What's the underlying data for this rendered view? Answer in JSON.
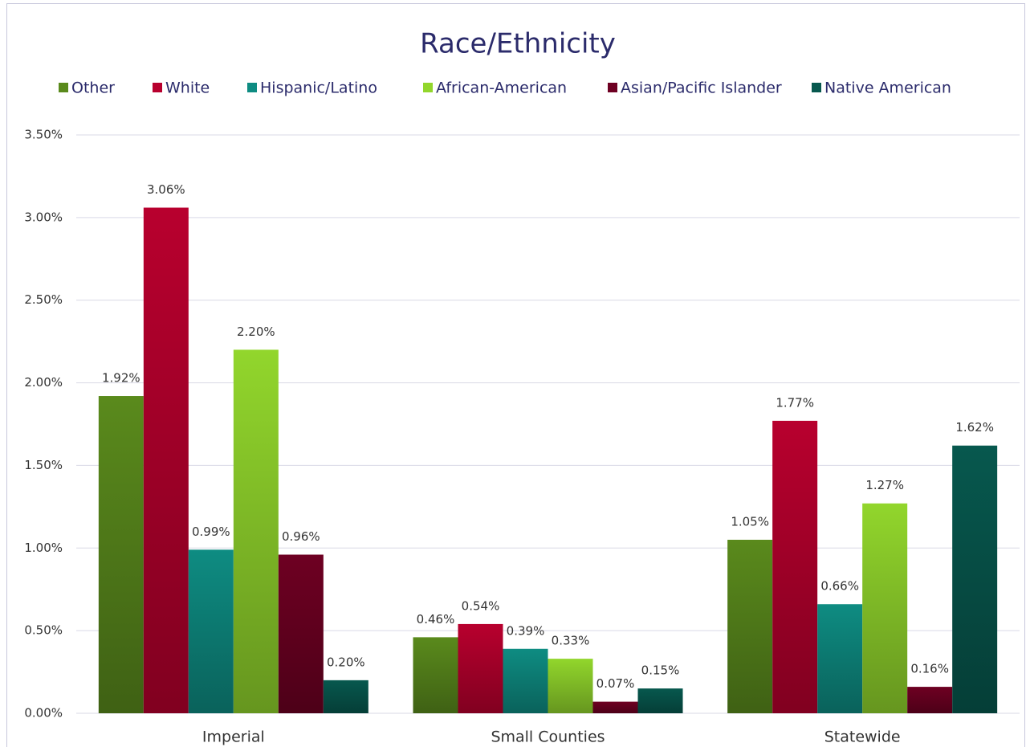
{
  "chart_data": {
    "type": "bar",
    "title": "Race/Ethnicity",
    "categories": [
      "Imperial",
      "Small Counties",
      "Statewide"
    ],
    "series": [
      {
        "name": "Other",
        "color": "#5a8a1c",
        "values": [
          1.92,
          0.46,
          1.05
        ],
        "value_labels": [
          "1.92%",
          "0.46%",
          "1.05%"
        ]
      },
      {
        "name": "White",
        "color": "#b8002e",
        "values": [
          3.06,
          0.54,
          1.77
        ],
        "value_labels": [
          "3.06%",
          "0.54%",
          "1.77%"
        ]
      },
      {
        "name": "Hispanic/Latino",
        "color": "#0e8c82",
        "values": [
          0.99,
          0.39,
          0.66
        ],
        "value_labels": [
          "0.99%",
          "0.39%",
          "0.66%"
        ]
      },
      {
        "name": "African-American",
        "color": "#92d62c",
        "values": [
          2.2,
          0.33,
          1.27
        ],
        "value_labels": [
          "2.20%",
          "0.33%",
          "1.27%"
        ]
      },
      {
        "name": "Asian/Pacific Islander",
        "color": "#6e0022",
        "values": [
          0.96,
          0.07,
          0.16
        ],
        "value_labels": [
          "0.96%",
          "0.07%",
          "0.16%"
        ]
      },
      {
        "name": "Native American",
        "color": "#07584e",
        "values": [
          0.2,
          0.15,
          1.62
        ],
        "value_labels": [
          "0.20%",
          "0.15%",
          "1.62%"
        ]
      }
    ],
    "ylim": [
      0,
      3.5
    ],
    "yticks": [
      {
        "value": 0,
        "label": "0.00%"
      },
      {
        "value": 0.5,
        "label": "0.50%"
      },
      {
        "value": 1,
        "label": "1.00%"
      },
      {
        "value": 1.5,
        "label": "1.50%"
      },
      {
        "value": 2,
        "label": "2.00%"
      },
      {
        "value": 2.5,
        "label": "2.50%"
      },
      {
        "value": 3,
        "label": "3.00%"
      },
      {
        "value": 3.5,
        "label": "3.50%"
      }
    ],
    "grid": true,
    "legend": "top"
  }
}
